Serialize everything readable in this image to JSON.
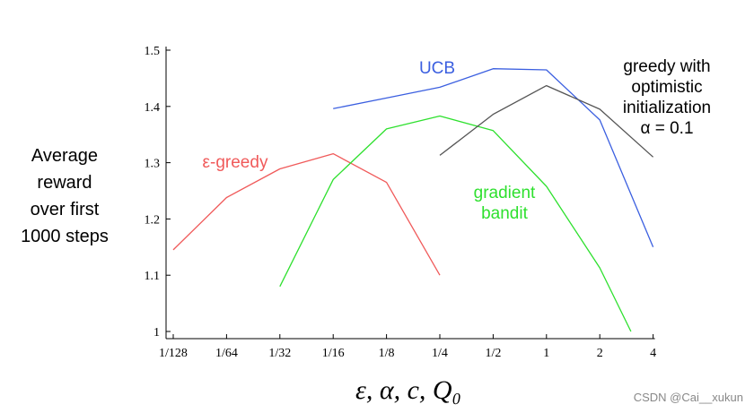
{
  "chart_data": {
    "type": "line",
    "categories": [
      "1/128",
      "1/64",
      "1/32",
      "1/16",
      "1/8",
      "1/4",
      "1/2",
      "1",
      "2",
      "4"
    ],
    "ylim": [
      1.0,
      1.5
    ],
    "yticks": [
      "1",
      "1.1",
      "1.2",
      "1.3",
      "1.4",
      "1.5"
    ],
    "ylabel_lines": [
      "Average",
      "reward",
      "over first",
      "1000 steps"
    ],
    "xlabel": "ε,  α,  c,  Q₀",
    "grid": false,
    "series": [
      {
        "name": "ε-greedy",
        "color": "#f05a5a",
        "x": [
          "1/128",
          "1/64",
          "1/32",
          "1/16",
          "1/8",
          "1/4"
        ],
        "values": [
          1.145,
          1.238,
          1.289,
          1.316,
          1.265,
          1.1
        ]
      },
      {
        "name": "UCB",
        "color": "#3b5fe0",
        "x": [
          "1/16",
          "1/8",
          "1/4",
          "1/2",
          "1",
          "2",
          "4"
        ],
        "values": [
          1.396,
          1.415,
          1.434,
          1.467,
          1.465,
          1.376,
          1.15
        ]
      },
      {
        "name": "gradient bandit",
        "color": "#2ee02e",
        "x": [
          "1/32",
          "1/16",
          "1/8",
          "1/4",
          "1/2",
          "1",
          "2",
          "3"
        ],
        "values": [
          1.08,
          1.27,
          1.36,
          1.383,
          1.357,
          1.258,
          1.113,
          1.0
        ]
      },
      {
        "name": "greedy with optimistic initialization α = 0.1",
        "color": "#555555",
        "x": [
          "1/4",
          "1/2",
          "1",
          "2",
          "4"
        ],
        "values": [
          1.313,
          1.386,
          1.437,
          1.395,
          1.31
        ]
      }
    ],
    "labels": [
      {
        "series": 0,
        "lines": [
          "ε-greedy"
        ]
      },
      {
        "series": 1,
        "lines": [
          "UCB"
        ]
      },
      {
        "series": 2,
        "lines": [
          "gradient",
          "bandit"
        ]
      },
      {
        "series": 3,
        "lines": [
          "greedy with",
          "optimistic",
          "initialization",
          "α = 0.1"
        ]
      }
    ]
  },
  "watermark": "CSDN @Cai__xukun"
}
